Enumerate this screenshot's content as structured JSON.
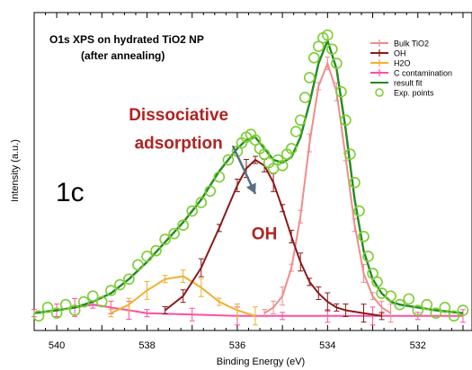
{
  "chart_data": {
    "type": "line",
    "title": "O1s XPS on hydrated TiO2 NP",
    "subtitle": "(after annealing)",
    "panel_label": "1c",
    "xlabel": "Binding Energy (eV)",
    "ylabel": "Intensity (a.u.)",
    "x_reversed": true,
    "xlim": [
      540.5,
      530.8
    ],
    "ylim": [
      0,
      100
    ],
    "x_ticks": [
      540,
      538,
      536,
      534,
      532
    ],
    "annotations": [
      {
        "text": "Dissociative",
        "x": 537.3,
        "y": 70
      },
      {
        "text": "adsorption",
        "x": 537.3,
        "y": 60
      },
      {
        "text": "OH",
        "x": 535.4,
        "y": 28
      }
    ],
    "arrow": {
      "from": [
        536.1,
        61
      ],
      "to": [
        535.6,
        44
      ]
    },
    "legend": {
      "position": "top-right",
      "entries": [
        {
          "label": "Bulk TiO2",
          "color": "#f08c8c",
          "marker": "line-errorbar"
        },
        {
          "label": "OH",
          "color": "#8b1a1a",
          "marker": "line-errorbar"
        },
        {
          "label": "H2O",
          "color": "#f0b030",
          "marker": "line-errorbar"
        },
        {
          "label": "C contamination",
          "color": "#ff4fa0",
          "marker": "line-errorbar"
        },
        {
          "label": "result fit",
          "color": "#228b22",
          "marker": "line"
        },
        {
          "label": "Exp. points",
          "color": "#7ccd33",
          "marker": "circle"
        }
      ]
    },
    "series": [
      {
        "name": "Bulk TiO2",
        "color": "#f08c8c",
        "x": [
          535.4,
          535.2,
          535.0,
          534.8,
          534.6,
          534.4,
          534.2,
          534.0,
          533.8,
          533.6,
          533.4,
          533.2,
          533.0,
          532.8,
          532.6
        ],
        "y": [
          2,
          4,
          8,
          18,
          36,
          62,
          82,
          90,
          80,
          57,
          33,
          16,
          8,
          4,
          2
        ]
      },
      {
        "name": "OH",
        "color": "#8b1a1a",
        "x": [
          537.6,
          537.2,
          536.8,
          536.4,
          536.0,
          535.8,
          535.6,
          535.4,
          535.2,
          535.0,
          534.8,
          534.6,
          534.4,
          534.2,
          534.0,
          533.8,
          533.6,
          533.2,
          532.8
        ],
        "y": [
          3,
          8,
          18,
          32,
          47,
          53,
          56,
          54,
          48,
          39,
          29,
          20,
          13,
          9,
          6,
          4,
          3,
          2,
          1
        ]
      },
      {
        "name": "H2O",
        "color": "#f0b030",
        "x": [
          538.8,
          538.4,
          538.0,
          537.6,
          537.2,
          536.8,
          536.4,
          536.0,
          535.6
        ],
        "y": [
          2,
          5,
          10,
          14,
          15,
          11,
          6,
          3,
          1
        ]
      },
      {
        "name": "C contamination",
        "color": "#ff4fa0",
        "x": [
          540.5,
          540.0,
          539.6,
          539.2,
          538.8,
          538.4,
          538.0,
          537.0,
          536.0,
          535.0,
          534.0,
          533.0,
          532.0,
          531.0
        ],
        "y": [
          2,
          3,
          4,
          5,
          4,
          3,
          2,
          1.5,
          1,
          1,
          1,
          1,
          1,
          1
        ]
      },
      {
        "name": "result fit",
        "color": "#228b22",
        "x": [
          540.5,
          540.0,
          539.6,
          539.2,
          538.8,
          538.4,
          538.0,
          537.6,
          537.2,
          536.8,
          536.4,
          536.0,
          535.8,
          535.6,
          535.4,
          535.2,
          535.0,
          534.8,
          534.6,
          534.4,
          534.2,
          534.0,
          533.8,
          533.6,
          533.4,
          533.2,
          533.0,
          532.8,
          532.6,
          532.4,
          532.0,
          531.6,
          531.0
        ],
        "y": [
          2,
          3,
          4,
          6,
          9,
          14,
          20,
          27,
          34,
          42,
          52,
          60,
          63,
          64,
          60,
          56,
          55,
          57,
          64,
          76,
          90,
          98,
          88,
          67,
          42,
          24,
          14,
          9,
          6,
          5,
          4,
          3,
          2
        ]
      }
    ],
    "points": {
      "name": "Exp. points",
      "color": "#7ccd33",
      "x": [
        540.4,
        540.2,
        540.0,
        539.8,
        539.6,
        539.4,
        539.2,
        539.0,
        538.8,
        538.6,
        538.4,
        538.2,
        538.0,
        537.8,
        537.6,
        537.4,
        537.2,
        537.0,
        536.8,
        536.6,
        536.4,
        536.2,
        536.0,
        535.9,
        535.8,
        535.7,
        535.6,
        535.5,
        535.4,
        535.3,
        535.2,
        535.1,
        535.0,
        534.9,
        534.8,
        534.7,
        534.6,
        534.5,
        534.4,
        534.3,
        534.2,
        534.1,
        534.0,
        533.9,
        533.8,
        533.7,
        533.6,
        533.5,
        533.4,
        533.3,
        533.2,
        533.1,
        533.0,
        532.9,
        532.8,
        532.6,
        532.4,
        532.2,
        532.0,
        531.8,
        531.6,
        531.4,
        531.2,
        531.0
      ],
      "y": [
        1,
        4,
        2,
        5,
        3,
        6,
        8,
        6,
        10,
        12,
        14,
        19,
        22,
        24,
        28,
        30,
        33,
        38,
        41,
        45,
        50,
        56,
        59,
        62,
        64,
        65,
        63,
        60,
        58,
        55,
        53,
        56,
        54,
        58,
        60,
        66,
        70,
        78,
        85,
        92,
        96,
        99,
        100,
        95,
        90,
        80,
        70,
        58,
        48,
        38,
        29,
        22,
        16,
        13,
        9,
        8,
        5,
        7,
        3,
        5,
        2,
        4,
        1,
        3
      ]
    }
  }
}
